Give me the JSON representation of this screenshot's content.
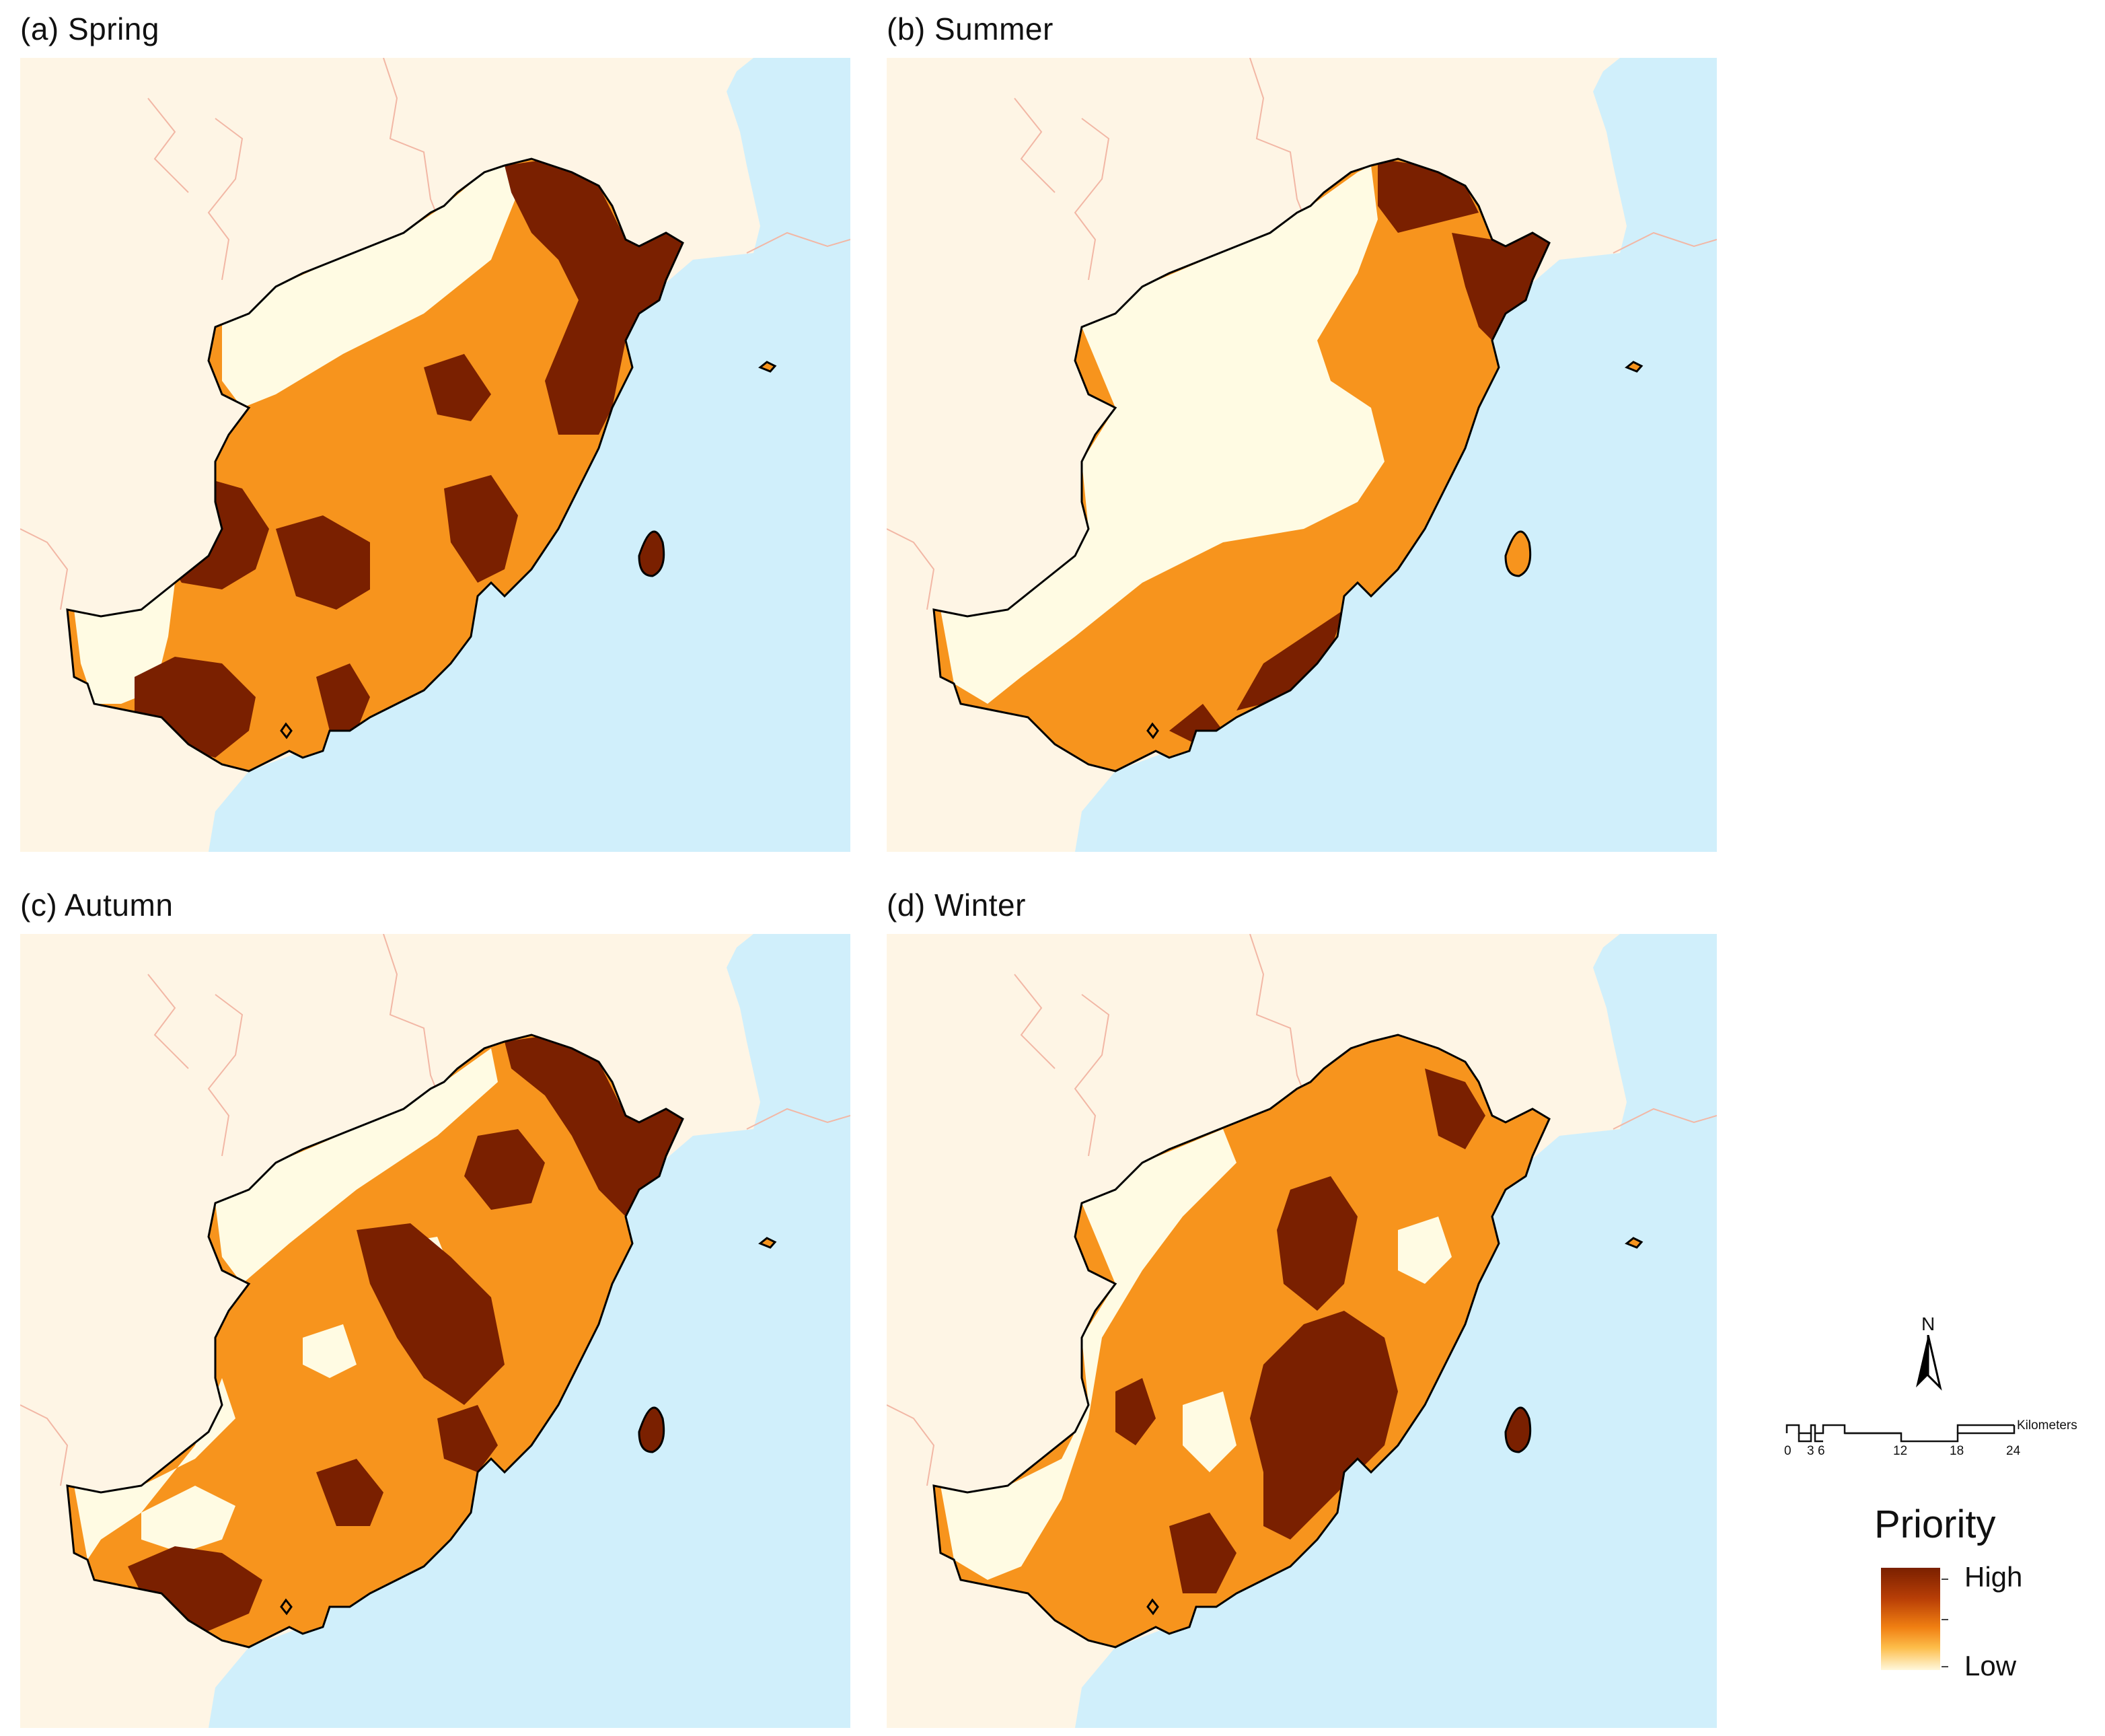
{
  "panels": [
    {
      "id": "spring",
      "title": "(a) Spring"
    },
    {
      "id": "summer",
      "title": "(b) Summer"
    },
    {
      "id": "autumn",
      "title": "(c) Autumn"
    },
    {
      "id": "winter",
      "title": "(d) Winter"
    }
  ],
  "north_arrow": {
    "label": "N"
  },
  "scale_bar": {
    "unit": "Kilometers",
    "ticks": [
      "0",
      "3",
      "6",
      "12",
      "18",
      "24"
    ]
  },
  "legend": {
    "title": "Priority",
    "high_label": "High",
    "low_label": "Low",
    "colors": {
      "high": "#7a2000",
      "mid": "#f7941d",
      "low": "#fffbe3"
    }
  },
  "colors": {
    "sea": "#d0effb",
    "land": "#fef5e5",
    "neighbor_border": "#f2b7a5",
    "study_boundary": "#000000",
    "low_priority": "#fffbe3",
    "medium_priority": "#f7941d",
    "high_priority": "#7a2000"
  }
}
